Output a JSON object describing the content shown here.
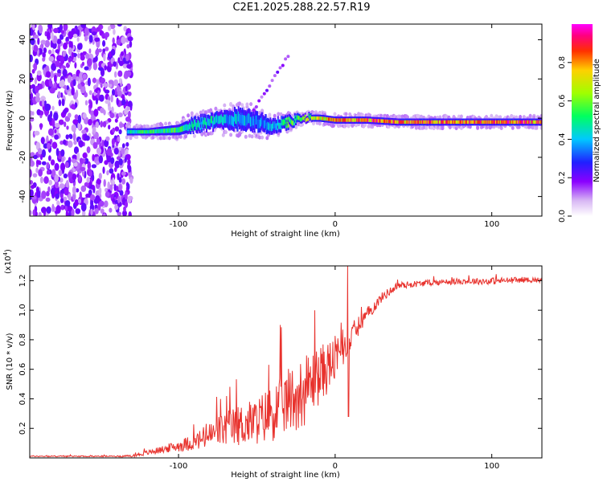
{
  "title": "C2E1.2025.288.22.57.R19",
  "chart_data": [
    {
      "type": "heatmap",
      "title": "C2E1.2025.288.22.57.R19",
      "xlabel": "Height of straight line (km)",
      "ylabel": "Frequency (Hz)",
      "xlim": [
        -195,
        132
      ],
      "ylim": [
        -50,
        48
      ],
      "x_ticks": [
        -100,
        0,
        100
      ],
      "y_ticks": [
        -40,
        -20,
        0,
        20,
        40
      ],
      "colorbar": {
        "label": "Normalized spectral amplitude",
        "range": [
          0,
          1
        ],
        "ticks": [
          0.0,
          0.2,
          0.4,
          0.6,
          0.8
        ]
      },
      "signal_track": {
        "x": [
          -133,
          -120,
          -100,
          -90,
          -80,
          -70,
          -60,
          -50,
          -40,
          -30,
          -20,
          -10,
          0,
          10,
          20,
          40,
          60,
          80,
          100,
          120,
          132
        ],
        "freq_center": [
          -7,
          -7,
          -6,
          -3,
          -2,
          -1,
          0,
          -2,
          -4,
          -2,
          0,
          0,
          -1,
          -1,
          -1,
          -2,
          -2,
          -2,
          -2,
          -2,
          -2
        ],
        "half_width": [
          2,
          2,
          3,
          4,
          4,
          5,
          6,
          5,
          4,
          3,
          2,
          2,
          2,
          2,
          2,
          2,
          2,
          2,
          2,
          2,
          2
        ],
        "amplitude": [
          0.5,
          0.6,
          0.6,
          0.5,
          0.5,
          0.45,
          0.45,
          0.4,
          0.45,
          0.6,
          0.7,
          0.8,
          0.85,
          0.9,
          0.95,
          0.95,
          0.9,
          0.9,
          0.95,
          0.95,
          0.9
        ]
      },
      "noise_region_x": [
        -195,
        -130
      ],
      "branch_feature": {
        "x": [
          -52,
          -30
        ],
        "freq": [
          4,
          32
        ]
      }
    },
    {
      "type": "line",
      "xlabel": "Height of straight line (km)",
      "ylabel": "SNR (10 * v/v)",
      "y_multiplier": "(x10",
      "y_multiplier_exp": "4",
      "y_multiplier_close": ")",
      "xlim": [
        -195,
        132
      ],
      "ylim": [
        0,
        1.3
      ],
      "x_ticks": [
        -100,
        0,
        100
      ],
      "y_ticks": [
        0.2,
        0.4,
        0.6,
        0.8,
        1.0,
        1.2
      ],
      "series": [
        {
          "name": "SNR",
          "color": "#e8322d",
          "x": [
            -195,
            -140,
            -130,
            -120,
            -110,
            -100,
            -90,
            -80,
            -70,
            -60,
            -50,
            -40,
            -30,
            -20,
            -10,
            0,
            5,
            8,
            10,
            20,
            30,
            40,
            60,
            80,
            100,
            120,
            132
          ],
          "base": [
            0.01,
            0.01,
            0.01,
            0.03,
            0.05,
            0.07,
            0.09,
            0.12,
            0.16,
            0.18,
            0.2,
            0.25,
            0.32,
            0.38,
            0.5,
            0.62,
            0.7,
            0.72,
            0.8,
            0.95,
            1.08,
            1.16,
            1.18,
            1.19,
            1.19,
            1.2,
            1.2
          ],
          "spread": [
            0.005,
            0.005,
            0.01,
            0.02,
            0.03,
            0.05,
            0.07,
            0.12,
            0.15,
            0.18,
            0.2,
            0.25,
            0.28,
            0.3,
            0.25,
            0.2,
            0.15,
            0.1,
            0.1,
            0.06,
            0.04,
            0.03,
            0.025,
            0.025,
            0.03,
            0.025,
            0.02
          ],
          "peaks": [
            {
              "x": 8,
              "y": 1.3
            },
            {
              "x": 8.5,
              "y": 0.28
            },
            {
              "x": -13,
              "y": 1.0
            },
            {
              "x": -35,
              "y": 0.9
            }
          ]
        }
      ]
    }
  ]
}
